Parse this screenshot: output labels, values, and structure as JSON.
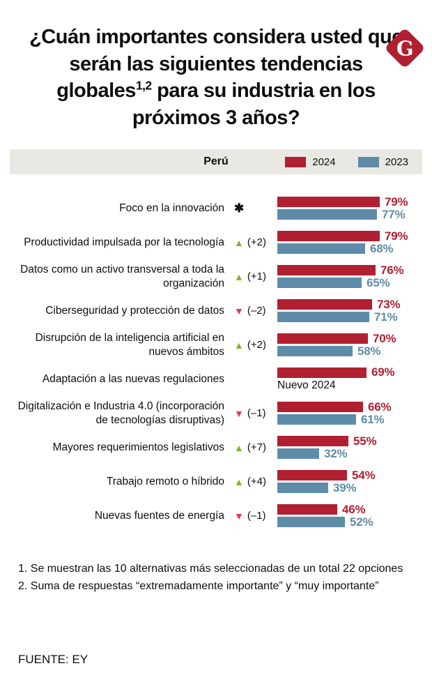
{
  "logo": {
    "letter": "G"
  },
  "title": {
    "part1": "¿Cuán importantes considera usted que serán las siguientes tendencias globales",
    "sup": "1,2",
    "part2": " para su industria en los próximos 3 años?"
  },
  "legend": {
    "region": "Perú",
    "series": [
      {
        "label": "2024",
        "color": "#b02031"
      },
      {
        "label": "2023",
        "color": "#5e8ca8"
      }
    ]
  },
  "chart_data": {
    "type": "bar",
    "orientation": "horizontal",
    "unit": "%",
    "series_names": [
      "2024",
      "2023"
    ],
    "x_max": 100,
    "rows": [
      {
        "label": "Foco en la innovación",
        "indicator": {
          "type": "star",
          "text": "✱"
        },
        "value_2024": 79,
        "value_2023": 77
      },
      {
        "label": "Productividad impulsada por la tecnología",
        "indicator": {
          "type": "up",
          "text": "(+2)"
        },
        "value_2024": 79,
        "value_2023": 68
      },
      {
        "label": "Datos como un activo transversal a toda la organización",
        "indicator": {
          "type": "up",
          "text": "(+1)"
        },
        "value_2024": 76,
        "value_2023": 65
      },
      {
        "label": "Ciberseguridad y protección de datos",
        "indicator": {
          "type": "down",
          "text": "(–2)"
        },
        "value_2024": 73,
        "value_2023": 71
      },
      {
        "label": "Disrupción de la inteligencia artificial en nuevos ámbitos",
        "indicator": {
          "type": "up",
          "text": "(+2)"
        },
        "value_2024": 70,
        "value_2023": 58
      },
      {
        "label": "Adaptación a las nuevas regulaciones",
        "indicator": null,
        "value_2024": 69,
        "value_2023": null,
        "note": "Nuevo 2024"
      },
      {
        "label": "Digitalización e Industria 4.0 (incorporación de tecnologías disruptivas)",
        "indicator": {
          "type": "down",
          "text": "(–1)"
        },
        "value_2024": 66,
        "value_2023": 61
      },
      {
        "label": "Mayores requerimientos legislativos",
        "indicator": {
          "type": "up",
          "text": "(+7)"
        },
        "value_2024": 55,
        "value_2023": 32
      },
      {
        "label": "Trabajo remoto o híbrido",
        "indicator": {
          "type": "up",
          "text": "(+4)"
        },
        "value_2024": 54,
        "value_2023": 39
      },
      {
        "label": "Nuevas fuentes de energía",
        "indicator": {
          "type": "down",
          "text": "(–1)"
        },
        "value_2024": 46,
        "value_2023": 52
      }
    ]
  },
  "footnotes": [
    "1. Se muestran las 10 alternativas más seleccionadas de un total 22 opciones",
    "2. Suma de respuestas “extremadamente importante” y “muy importante”"
  ],
  "source": "FUENTE: EY",
  "colors": {
    "red": "#b02031",
    "blue": "#5e8ca8",
    "green": "#76b82a",
    "down_red": "#e03a4e",
    "legend_bg": "#e9e8e3"
  }
}
